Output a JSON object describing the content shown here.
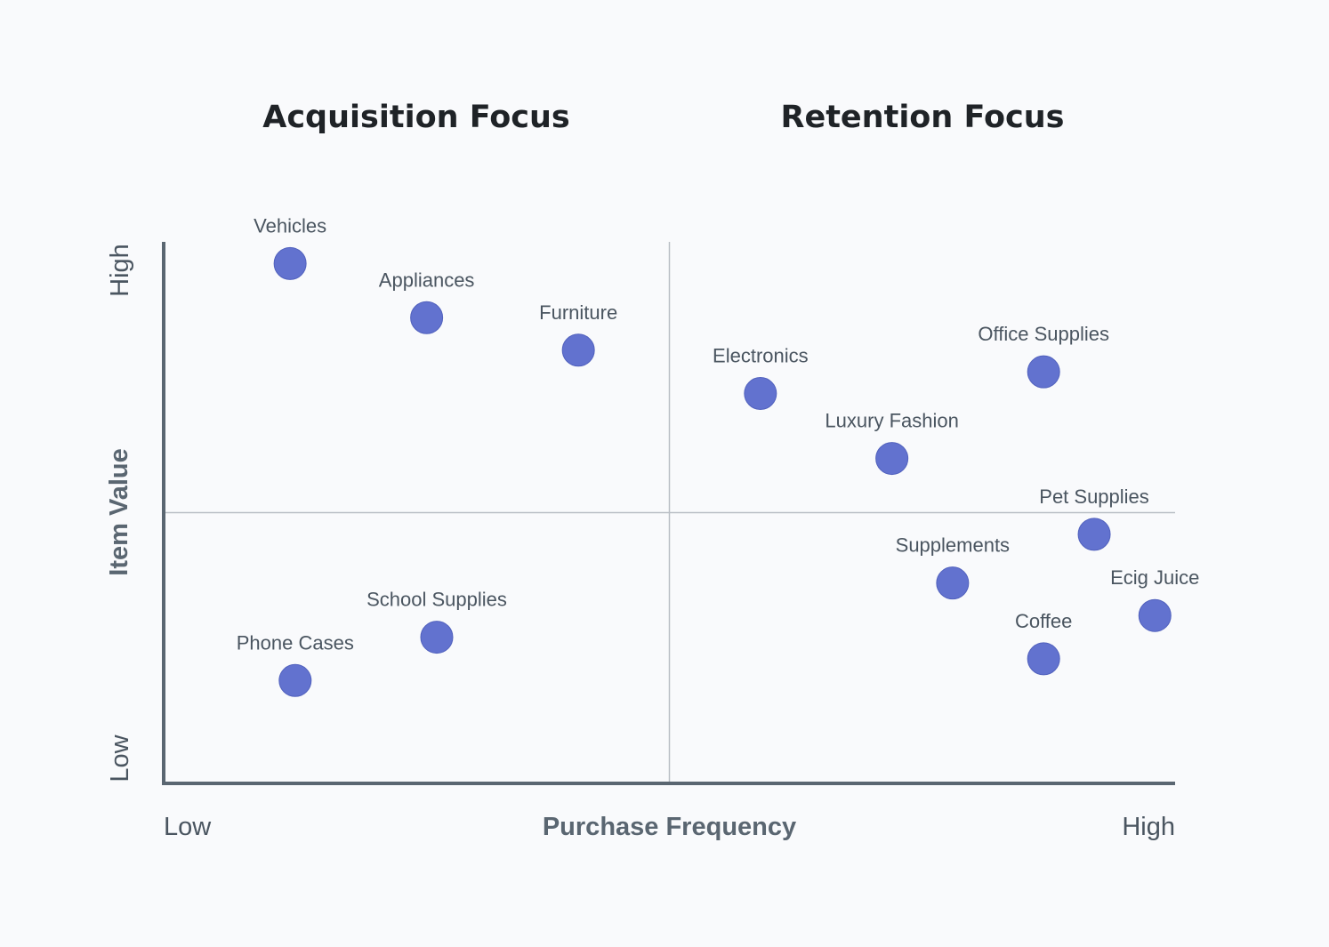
{
  "header": {
    "left_title": "Acquisition Focus",
    "right_title": "Retention Focus"
  },
  "chart_data": {
    "type": "scatter",
    "xlabel": "Purchase Frequency",
    "ylabel": "Item Value",
    "x_tick_labels": [
      "Low",
      "High"
    ],
    "y_tick_labels": [
      "Low",
      "High"
    ],
    "xlim": [
      0,
      100
    ],
    "ylim": [
      0,
      100
    ],
    "dividers": {
      "x": 50,
      "y": 50
    },
    "grid": false,
    "legend": "none",
    "colors": {
      "point": "#6272cf",
      "point_stroke": "#5161bd",
      "axis": "#5a6671",
      "divider": "#b9bfc5",
      "label": "#4a5560"
    },
    "points": [
      {
        "label": "Vehicles",
        "x": 12.5,
        "y": 96
      },
      {
        "label": "Appliances",
        "x": 26,
        "y": 86
      },
      {
        "label": "Furniture",
        "x": 41,
        "y": 80
      },
      {
        "label": "Electronics",
        "x": 59,
        "y": 72
      },
      {
        "label": "Office Supplies",
        "x": 87,
        "y": 76
      },
      {
        "label": "Luxury Fashion",
        "x": 72,
        "y": 60
      },
      {
        "label": "Pet Supplies",
        "x": 92,
        "y": 46
      },
      {
        "label": "Supplements",
        "x": 78,
        "y": 37
      },
      {
        "label": "Ecig Juice",
        "x": 98,
        "y": 31
      },
      {
        "label": "Coffee",
        "x": 87,
        "y": 23
      },
      {
        "label": "School Supplies",
        "x": 27,
        "y": 27
      },
      {
        "label": "Phone Cases",
        "x": 13,
        "y": 19
      }
    ]
  }
}
